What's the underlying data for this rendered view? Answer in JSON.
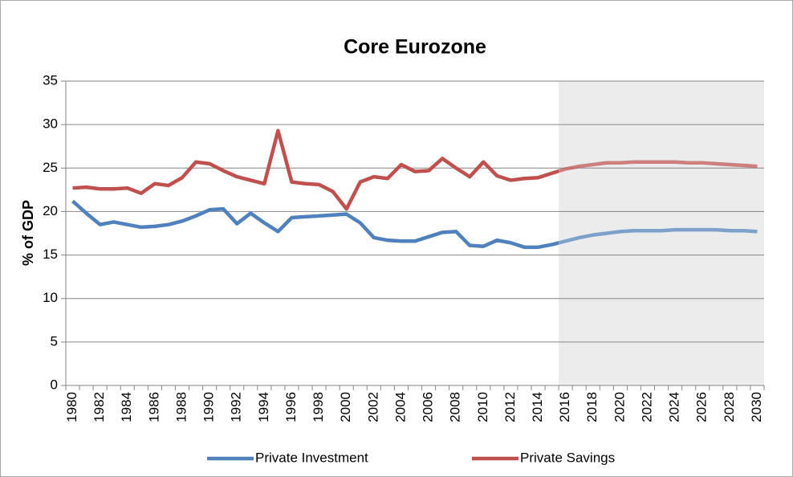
{
  "chart_data": {
    "type": "line",
    "title": "Core Eurozone",
    "y_label": "% of GDP",
    "x": [
      1980,
      1981,
      1982,
      1983,
      1984,
      1985,
      1986,
      1987,
      1988,
      1989,
      1990,
      1991,
      1992,
      1993,
      1994,
      1995,
      1996,
      1997,
      1998,
      1999,
      2000,
      2001,
      2002,
      2003,
      2004,
      2005,
      2006,
      2007,
      2008,
      2009,
      2010,
      2011,
      2012,
      2013,
      2014,
      2015,
      2016,
      2017,
      2018,
      2019,
      2020,
      2021,
      2022,
      2023,
      2024,
      2025,
      2026,
      2027,
      2028,
      2029,
      2030
    ],
    "series": [
      {
        "name": "Private Investment",
        "color": "#4f81bd",
        "values": [
          21.2,
          19.8,
          18.5,
          18.8,
          18.5,
          18.2,
          18.3,
          18.5,
          18.9,
          19.5,
          20.2,
          20.3,
          18.6,
          19.8,
          18.7,
          17.7,
          19.3,
          19.4,
          19.5,
          19.6,
          19.7,
          18.7,
          17.0,
          16.7,
          16.6,
          16.6,
          17.1,
          17.6,
          17.7,
          16.1,
          16.0,
          16.7,
          16.4,
          15.9,
          15.9,
          16.2,
          16.6,
          17.0,
          17.3,
          17.5,
          17.7,
          17.8,
          17.8,
          17.8,
          17.9,
          17.9,
          17.9,
          17.9,
          17.8,
          17.8,
          17.7
        ]
      },
      {
        "name": "Private Savings",
        "color": "#c0504d",
        "values": [
          22.7,
          22.8,
          22.6,
          22.6,
          22.7,
          22.1,
          23.2,
          23.0,
          23.9,
          25.7,
          25.5,
          24.7,
          24.0,
          23.6,
          23.2,
          29.3,
          23.4,
          23.2,
          23.1,
          22.3,
          20.3,
          23.4,
          24.0,
          23.8,
          25.4,
          24.6,
          24.7,
          26.1,
          25.0,
          24.0,
          25.7,
          24.1,
          23.6,
          23.8,
          23.9,
          24.4,
          24.9,
          25.2,
          25.4,
          25.6,
          25.6,
          25.7,
          25.7,
          25.7,
          25.7,
          25.6,
          25.6,
          25.5,
          25.4,
          25.3,
          25.2
        ]
      }
    ],
    "xlim": [
      1979.5,
      2030.5
    ],
    "xticks": [
      1980,
      1982,
      1984,
      1986,
      1988,
      1990,
      1992,
      1994,
      1996,
      1998,
      2000,
      2002,
      2004,
      2006,
      2008,
      2010,
      2012,
      2014,
      2016,
      2018,
      2020,
      2022,
      2024,
      2026,
      2028,
      2030
    ],
    "ylim": [
      0,
      35
    ],
    "yticks": [
      0,
      5,
      10,
      15,
      20,
      25,
      30,
      35
    ],
    "grid": true,
    "shade_from": 2015.5,
    "shade_color": "#ececec",
    "legend": "bottom"
  }
}
